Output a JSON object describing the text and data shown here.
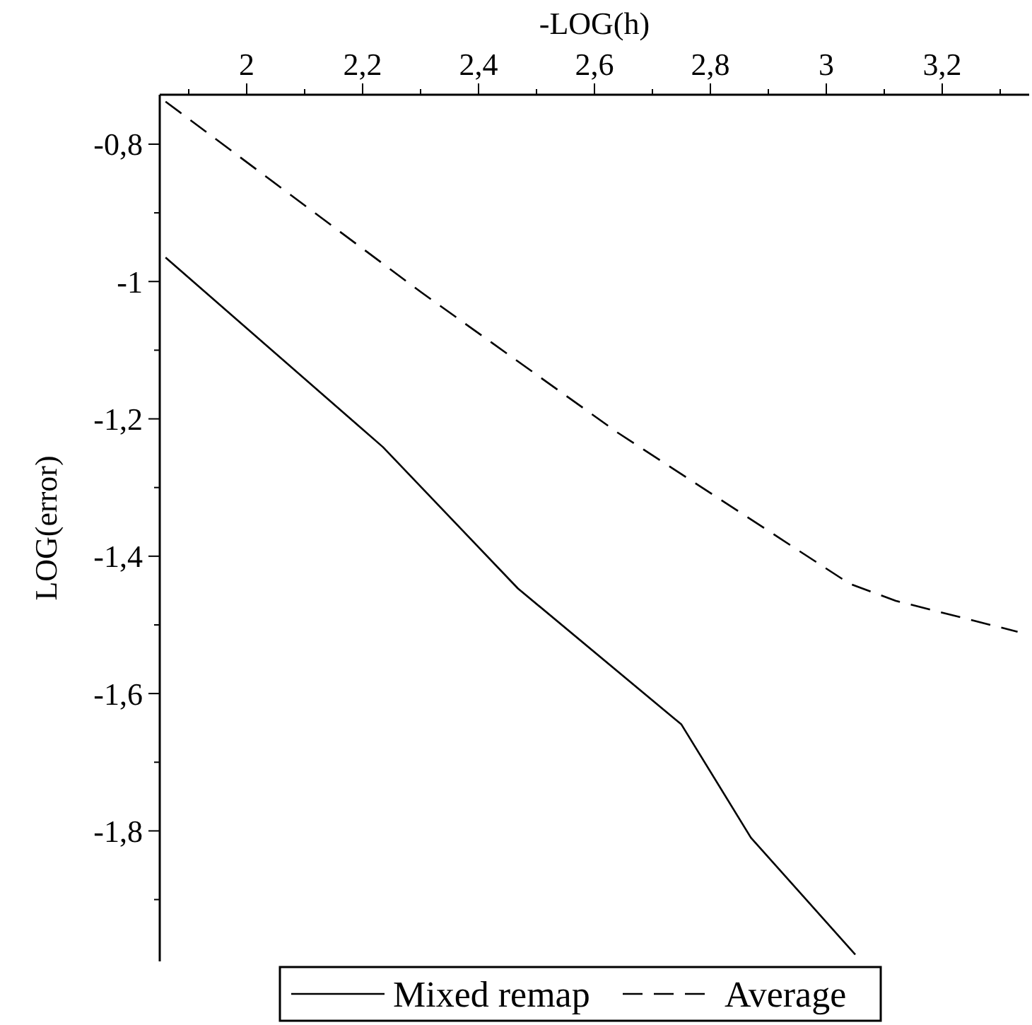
{
  "chart_data": {
    "type": "line",
    "xlabel": "-LOG(h)",
    "ylabel": "LOG(error)",
    "xlim": [
      1.85,
      3.35
    ],
    "ylim": [
      -1.99,
      -0.728
    ],
    "xticks": [
      {
        "value": 1.9,
        "label": null
      },
      {
        "value": 2,
        "label": "2"
      },
      {
        "value": 2.1,
        "label": null
      },
      {
        "value": 2.2,
        "label": "2,2"
      },
      {
        "value": 2.3,
        "label": null
      },
      {
        "value": 2.4,
        "label": "2,4"
      },
      {
        "value": 2.5,
        "label": null
      },
      {
        "value": 2.6,
        "label": "2,6"
      },
      {
        "value": 2.7,
        "label": null
      },
      {
        "value": 2.8,
        "label": "2,8"
      },
      {
        "value": 2.9,
        "label": null
      },
      {
        "value": 3,
        "label": "3"
      },
      {
        "value": 3.1,
        "label": null
      },
      {
        "value": 3.2,
        "label": "3,2"
      },
      {
        "value": 3.3,
        "label": null
      }
    ],
    "yticks": [
      {
        "value": -0.8,
        "label": "-0,8"
      },
      {
        "value": -0.9,
        "label": null
      },
      {
        "value": -1,
        "label": "-1"
      },
      {
        "value": -1.1,
        "label": null
      },
      {
        "value": -1.2,
        "label": "-1,2"
      },
      {
        "value": -1.3,
        "label": null
      },
      {
        "value": -1.4,
        "label": "-1,4"
      },
      {
        "value": -1.5,
        "label": null
      },
      {
        "value": -1.6,
        "label": "-1,6"
      },
      {
        "value": -1.7,
        "label": null
      },
      {
        "value": -1.8,
        "label": "-1,8"
      },
      {
        "value": -1.9,
        "label": null
      }
    ],
    "legend": "bottom",
    "grid": false,
    "marker": "none",
    "series": [
      {
        "name": "Mixed remap",
        "color": "#000000",
        "line_style": "solid",
        "x": [
          1.86,
          2.235,
          2.468,
          2.75,
          2.87,
          3.05
        ],
        "values": [
          -0.965,
          -1.241,
          -1.447,
          -1.645,
          -1.81,
          -1.98
        ]
      },
      {
        "name": "Average",
        "color": "#000000",
        "line_style": "dashed",
        "x": [
          1.86,
          2.3,
          2.64,
          3.04,
          3.12,
          3.33
        ],
        "values": [
          -0.738,
          -1.015,
          -1.22,
          -1.44,
          -1.465,
          -1.51
        ]
      }
    ]
  }
}
